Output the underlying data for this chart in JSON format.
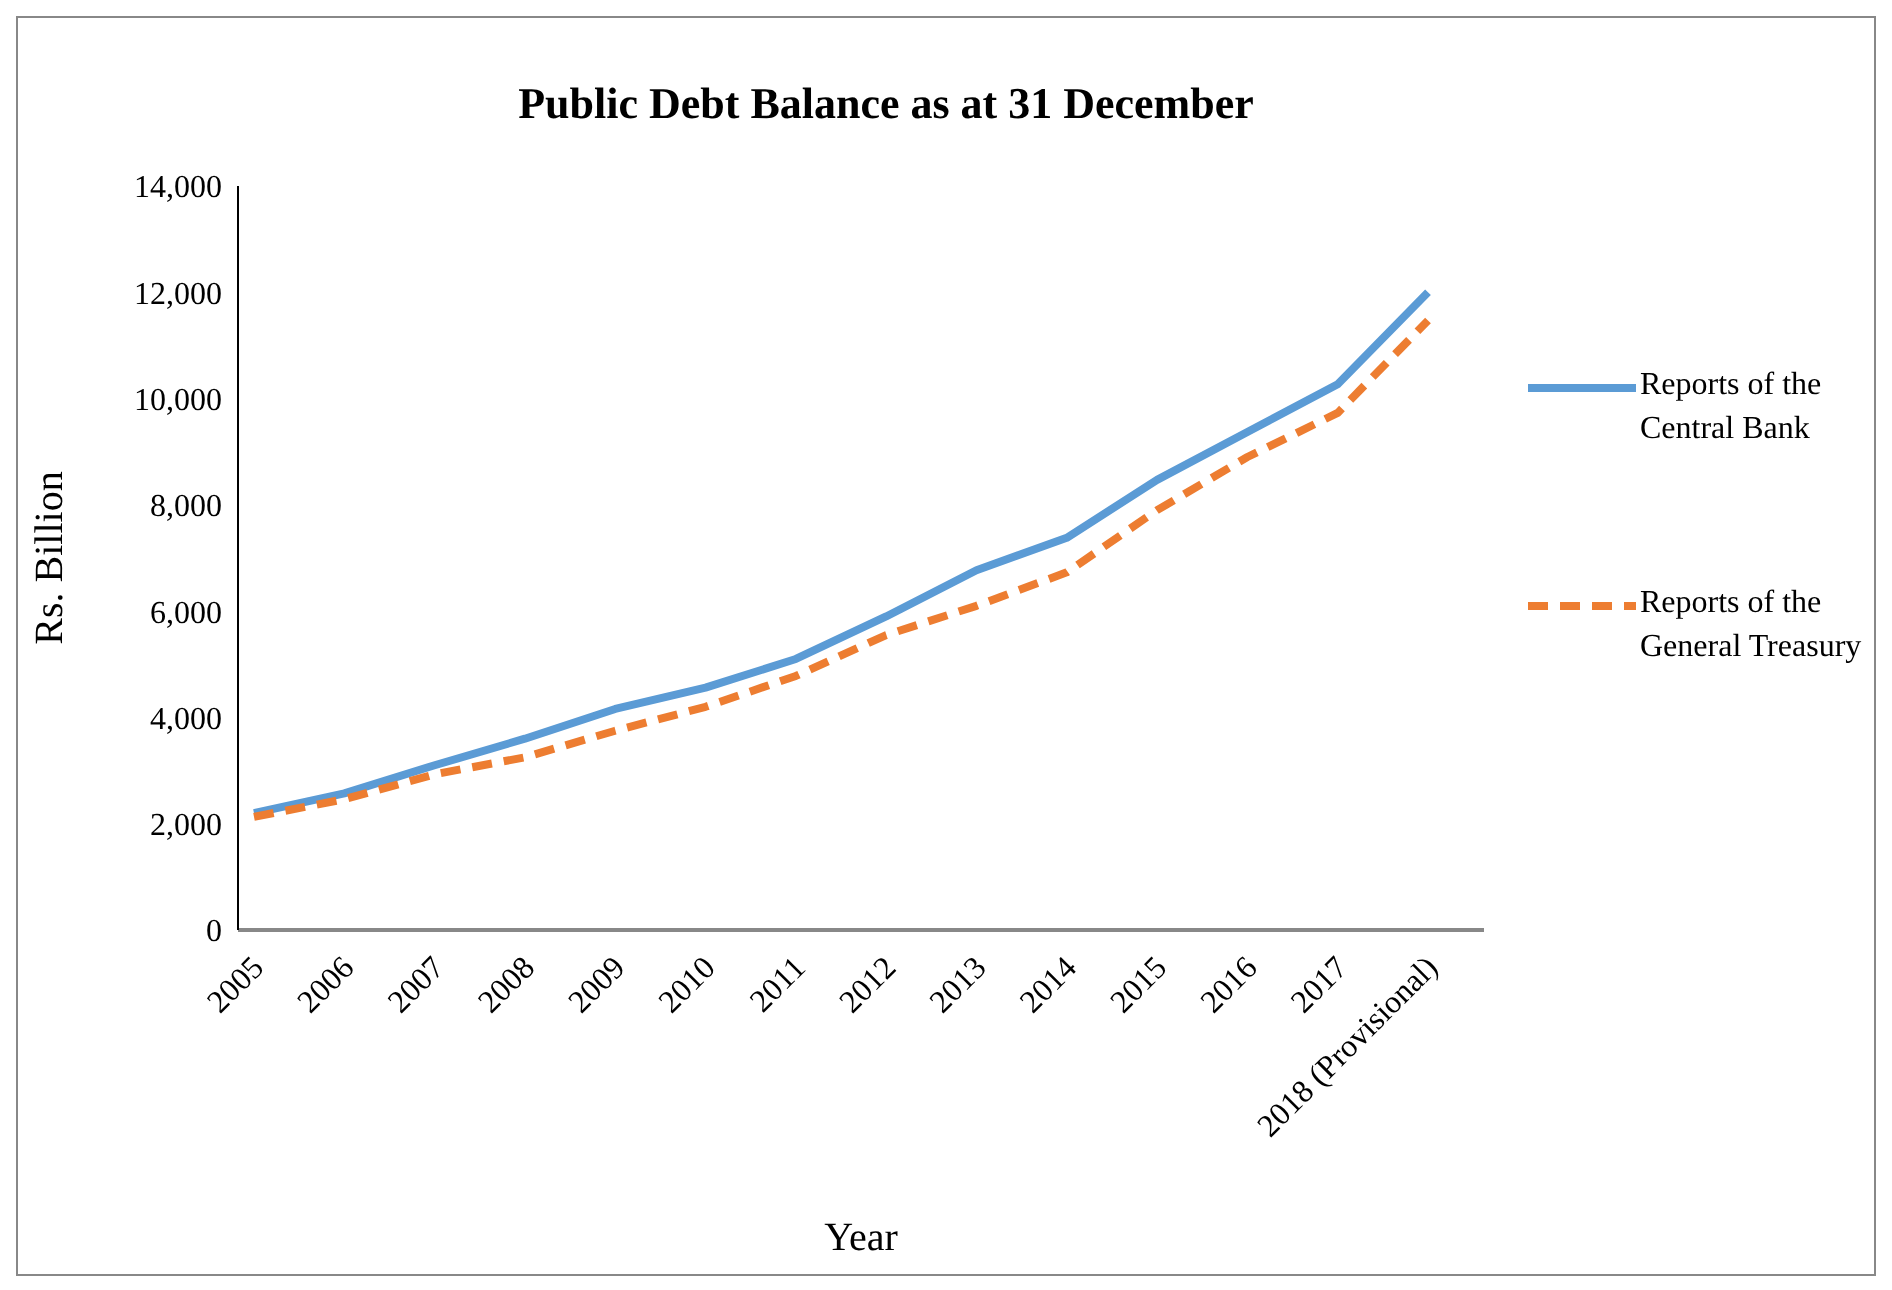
{
  "chart_data": {
    "type": "line",
    "title": "Public Debt Balance as at 31 December",
    "xlabel": "Year",
    "ylabel": "Rs. Billion",
    "categories": [
      "2005",
      "2006",
      "2007",
      "2008",
      "2009",
      "2010",
      "2011",
      "2012",
      "2013",
      "2014",
      "2015",
      "2016",
      "2017",
      "2018 (Provisional)"
    ],
    "series": [
      {
        "name": "Reports of the Central Bank",
        "color": "#5b9bd5",
        "line_style": "solid",
        "values": [
          2200,
          2570,
          3100,
          3600,
          4160,
          4560,
          5100,
          5900,
          6770,
          7380,
          8470,
          9370,
          10270,
          12000
        ]
      },
      {
        "name": "Reports of the General Treasury",
        "color": "#ed7d31",
        "line_style": "dashed",
        "values": [
          2130,
          2460,
          2930,
          3250,
          3750,
          4200,
          4780,
          5550,
          6100,
          6730,
          7900,
          8900,
          9730,
          11470
        ]
      }
    ],
    "ylim": [
      0,
      14000
    ],
    "yticks": [
      0,
      {
        "value": 2000,
        "label": "2,000"
      },
      {
        "value": 4000,
        "label": "4,000"
      },
      {
        "value": 6000,
        "label": "6,000"
      },
      {
        "value": 8000,
        "label": "8,000"
      },
      {
        "value": 10000,
        "label": "10,000"
      },
      {
        "value": 12000,
        "label": "12,000"
      },
      {
        "value": 14000,
        "label": "14,000"
      }
    ],
    "grid": false,
    "legend": "right",
    "marker": "none"
  }
}
